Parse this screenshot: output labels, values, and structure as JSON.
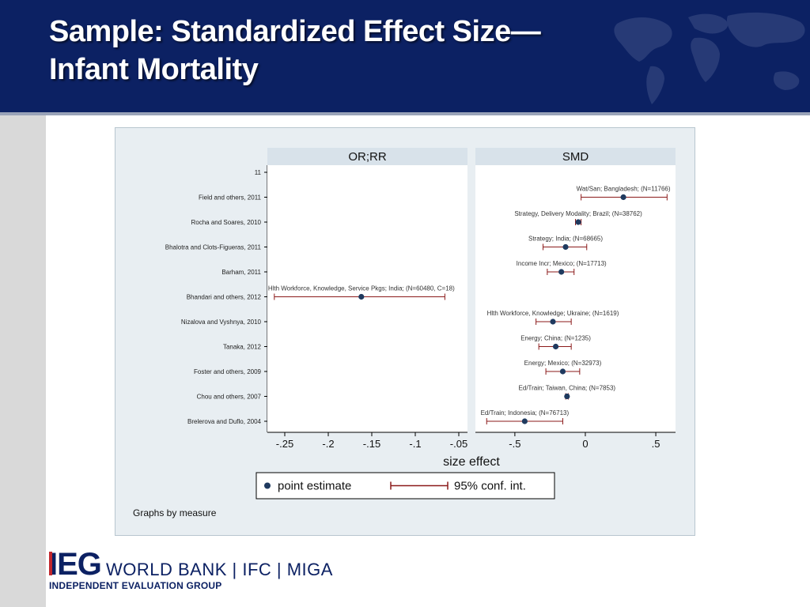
{
  "slide": {
    "title_line1": "Sample:  Standardized Effect Size—",
    "title_line2": "Infant Mortality"
  },
  "footer": {
    "logo_text": "IEG",
    "orgs": "WORLD BANK  |  IFC  |  MIGA",
    "subtitle": "INDEPENDENT EVALUATION GROUP"
  },
  "chart_data": {
    "type": "scatter",
    "subtype": "forest-plot",
    "xlabel": "size effect",
    "note": "Graphs by measure",
    "grid": false,
    "legend_position": "bottom",
    "legend": [
      {
        "name": "point estimate",
        "marker": "dot"
      },
      {
        "name": "95% conf. int.",
        "marker": "capped-bar"
      }
    ],
    "colors": {
      "point": "#1f3a5f",
      "ci": "#8b1a1a",
      "panel_bg": "#ffffff",
      "header_bg": "#d8e2ea",
      "outer_bg": "#e8eef2"
    },
    "studies": [
      "11",
      "Field and others, 2011",
      "Rocha and Soares, 2010",
      "Bhalotra and Clots-Figueras, 2011",
      "Barham, 2011",
      "Bhandari and others, 2012",
      "Nizalova and Vyshnya, 2010",
      "Tanaka, 2012",
      "Foster and others, 2009",
      "Chou and others, 2007",
      "Brelerova and Duflo, 2004"
    ],
    "panels": [
      {
        "title": "OR;RR",
        "xlim": [
          -0.27,
          -0.04
        ],
        "ticks": [
          -0.25,
          -0.2,
          -0.15,
          -0.1,
          -0.05
        ],
        "tick_labels": [
          "-.25",
          "-.2",
          "-.15",
          "-.1",
          "-.05"
        ],
        "points": [
          {
            "study": 5,
            "label": "Hlth Workforce, Knowledge, Service Pkgs; India; (N=60480, C=18)",
            "estimate": -0.162,
            "ci": [
              -0.262,
              -0.066
            ]
          }
        ]
      },
      {
        "title": "SMD",
        "xlim": [
          -0.78,
          0.64
        ],
        "ticks": [
          -0.5,
          0,
          0.5
        ],
        "tick_labels": [
          "-.5",
          "0",
          ".5"
        ],
        "points": [
          {
            "study": 1,
            "label": "Wat/San; Bangladesh; (N=11766)",
            "estimate": 0.27,
            "ci": [
              -0.03,
              0.58
            ]
          },
          {
            "study": 2,
            "label": "Strategy, Delivery Modality; Brazil; (N=38762)",
            "estimate": -0.05,
            "ci": [
              -0.07,
              -0.03
            ]
          },
          {
            "study": 3,
            "label": "Strategy; India; (N=68665)",
            "estimate": -0.14,
            "ci": [
              -0.3,
              0.01
            ]
          },
          {
            "study": 4,
            "label": "Income Incr; Mexico; (N=17713)",
            "estimate": -0.17,
            "ci": [
              -0.27,
              -0.08
            ]
          },
          {
            "study": 6,
            "label": "Hlth Workforce, Knowledge; Ukraine; (N=1619)",
            "estimate": -0.23,
            "ci": [
              -0.35,
              -0.1
            ]
          },
          {
            "study": 7,
            "label": "Energy; China; (N=1235)",
            "estimate": -0.21,
            "ci": [
              -0.33,
              -0.1
            ]
          },
          {
            "study": 8,
            "label": "Energy; Mexico; (N=32973)",
            "estimate": -0.16,
            "ci": [
              -0.28,
              -0.04
            ]
          },
          {
            "study": 9,
            "label": "Ed/Train; Taiwan, China; (N=7853)",
            "estimate": -0.13,
            "ci": [
              -0.14,
              -0.12
            ]
          },
          {
            "study": 10,
            "label": "Ed/Train; Indonesia; (N=76713)",
            "estimate": -0.43,
            "ci": [
              -0.7,
              -0.16
            ]
          }
        ]
      }
    ]
  }
}
